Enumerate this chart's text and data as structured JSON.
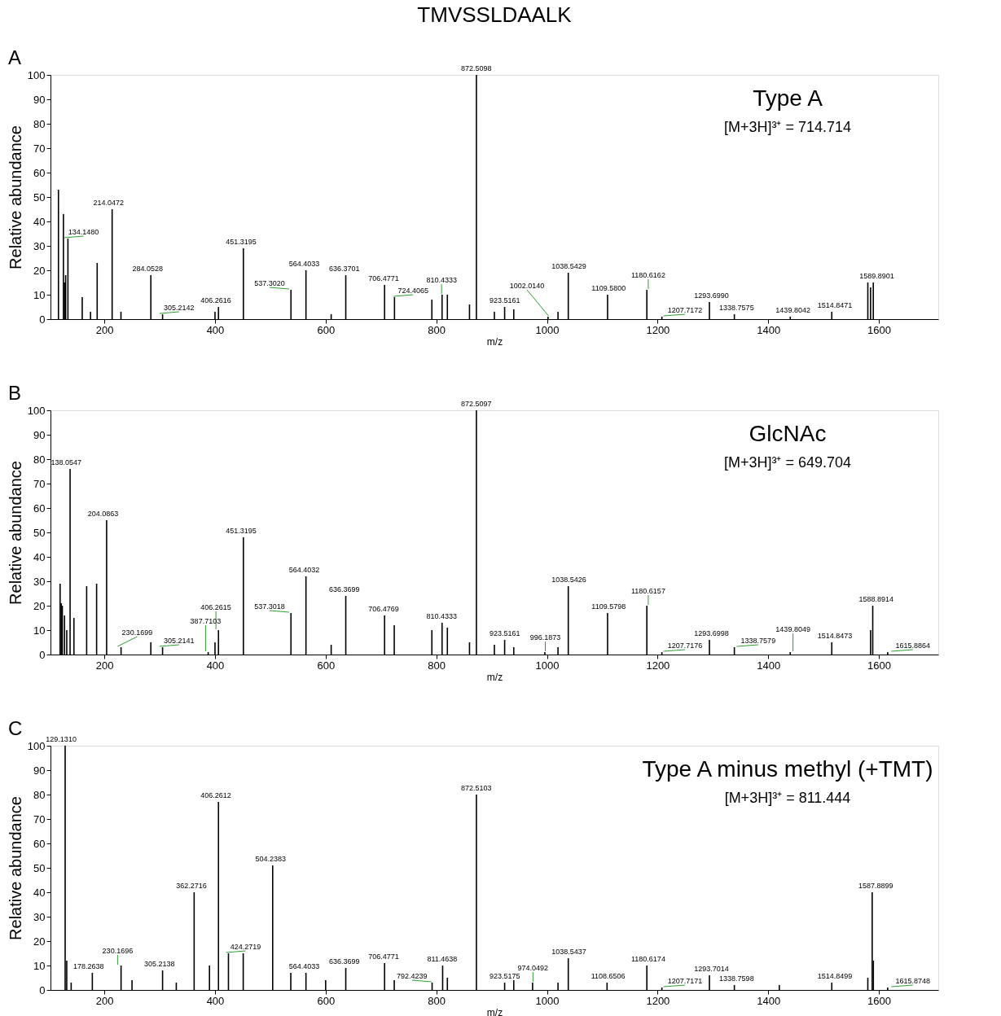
{
  "chart_data": [
    {
      "type": "bar",
      "title": "TMVSSLDAALK",
      "xlabel": "m/z",
      "ylabel": "Relative abundance",
      "color": "#000000",
      "xlim": [
        110,
        1700
      ],
      "ylim": [
        0,
        100
      ],
      "xticks": [
        200,
        400,
        600,
        800,
        1000,
        1200,
        1400,
        1600
      ],
      "yticks": [
        0,
        10,
        20,
        30,
        40,
        50,
        60,
        70,
        80,
        90,
        100
      ],
      "grid": false,
      "annotations": [
        "A",
        "Type A",
        "[M+3H]³⁺ = 714.714",
        {
          "text": "134.1480",
          "x": 134.148,
          "y": 33
        },
        {
          "text": "214.0472",
          "x": 214.0472,
          "y": 45
        },
        {
          "text": "284.0528",
          "x": 284.0528,
          "y": 18
        },
        {
          "text": "305.2142",
          "x": 305.2142,
          "y": 2
        },
        {
          "text": "406.2616",
          "x": 406.2616,
          "y": 5
        },
        {
          "text": "451.3195",
          "x": 451.3195,
          "y": 29
        },
        {
          "text": "537.3020",
          "x": 537.302,
          "y": 12
        },
        {
          "text": "564.4033",
          "x": 564.4033,
          "y": 20
        },
        {
          "text": "636.3701",
          "x": 636.3701,
          "y": 18
        },
        {
          "text": "706.4771",
          "x": 706.4771,
          "y": 14
        },
        {
          "text": "724.4065",
          "x": 724.4065,
          "y": 9
        },
        {
          "text": "810.4333",
          "x": 810.4333,
          "y": 10
        },
        {
          "text": "872.5098",
          "x": 872.5098,
          "y": 100
        },
        {
          "text": "923.5161",
          "x": 923.5161,
          "y": 5
        },
        {
          "text": "1002.0140",
          "x": 1002.014,
          "y": 1
        },
        {
          "text": "1038.5429",
          "x": 1038.5429,
          "y": 19
        },
        {
          "text": "1109.5800",
          "x": 1109.58,
          "y": 10
        },
        {
          "text": "1180.6162",
          "x": 1180.6162,
          "y": 12
        },
        {
          "text": "1207.7172",
          "x": 1207.7172,
          "y": 1
        },
        {
          "text": "1293.6990",
          "x": 1293.699,
          "y": 7
        },
        {
          "text": "1338.7575",
          "x": 1338.7575,
          "y": 2
        },
        {
          "text": "1439.8042",
          "x": 1439.8042,
          "y": 1
        },
        {
          "text": "1514.8471",
          "x": 1514.8471,
          "y": 3
        },
        {
          "text": "1589.8901",
          "x": 1589.8901,
          "y": 15
        }
      ],
      "x": [
        117,
        126,
        128,
        130,
        134.148,
        160,
        175,
        187,
        214.0472,
        230,
        284.0528,
        305.2142,
        400,
        406.2616,
        451.3195,
        537.302,
        564.4033,
        610,
        636.3701,
        706.4771,
        724.4065,
        792,
        810.4333,
        820,
        860,
        872.5098,
        905,
        923.5161,
        940,
        1002.014,
        1020,
        1038.5429,
        1109.58,
        1180.6162,
        1207.7172,
        1293.699,
        1338.7575,
        1439.8042,
        1514.8471,
        1580,
        1585,
        1589.8901
      ],
      "values": [
        53,
        43,
        15,
        18,
        33,
        9,
        3,
        23,
        45,
        3,
        18,
        2,
        3,
        5,
        29,
        12,
        20,
        2,
        18,
        14,
        9,
        8,
        10,
        10,
        6,
        100,
        3,
        5,
        4,
        1,
        3,
        19,
        10,
        12,
        1,
        7,
        2,
        1,
        3,
        15,
        13,
        15
      ]
    },
    {
      "type": "bar",
      "xlabel": "m/z",
      "ylabel": "Relative abundance",
      "color": "#000000",
      "xlim": [
        110,
        1700
      ],
      "ylim": [
        0,
        100
      ],
      "xticks": [
        200,
        400,
        600,
        800,
        1000,
        1200,
        1400,
        1600
      ],
      "yticks": [
        0,
        10,
        20,
        30,
        40,
        50,
        60,
        70,
        80,
        90,
        100
      ],
      "grid": false,
      "annotations": [
        "B",
        "GlcNAc",
        "[M+3H]³⁺ = 649.704",
        {
          "text": "138.0547",
          "x": 138.0547,
          "y": 76
        },
        {
          "text": "204.0863",
          "x": 204.0863,
          "y": 55
        },
        {
          "text": "230.1699",
          "x": 230.1699,
          "y": 3
        },
        {
          "text": "305.2141",
          "x": 305.2141,
          "y": 3
        },
        {
          "text": "387.7103",
          "x": 387.7103,
          "y": 1
        },
        {
          "text": "406.2615",
          "x": 406.2615,
          "y": 10
        },
        {
          "text": "451.3195",
          "x": 451.3195,
          "y": 48
        },
        {
          "text": "537.3018",
          "x": 537.3018,
          "y": 17
        },
        {
          "text": "564.4032",
          "x": 564.4032,
          "y": 32
        },
        {
          "text": "636.3699",
          "x": 636.3699,
          "y": 24
        },
        {
          "text": "706.4769",
          "x": 706.4769,
          "y": 16
        },
        {
          "text": "810.4333",
          "x": 810.4333,
          "y": 13
        },
        {
          "text": "872.5097",
          "x": 872.5097,
          "y": 100
        },
        {
          "text": "923.5161",
          "x": 923.5161,
          "y": 6
        },
        {
          "text": "996.1873",
          "x": 996.1873,
          "y": 1
        },
        {
          "text": "1038.5426",
          "x": 1038.5426,
          "y": 28
        },
        {
          "text": "1109.5798",
          "x": 1109.5798,
          "y": 17
        },
        {
          "text": "1180.6157",
          "x": 1180.6157,
          "y": 20
        },
        {
          "text": "1207.7176",
          "x": 1207.7176,
          "y": 1
        },
        {
          "text": "1293.6998",
          "x": 1293.6998,
          "y": 6
        },
        {
          "text": "1338.7579",
          "x": 1338.7579,
          "y": 3
        },
        {
          "text": "1439.8049",
          "x": 1439.8049,
          "y": 1
        },
        {
          "text": "1514.8473",
          "x": 1514.8473,
          "y": 5
        },
        {
          "text": "1588.8914",
          "x": 1588.8914,
          "y": 20
        },
        {
          "text": "1615.8864",
          "x": 1615.8864,
          "y": 1
        }
      ],
      "x": [
        120,
        122,
        124,
        128,
        132,
        138.0547,
        145,
        168,
        186,
        204.0863,
        230.1699,
        284,
        305.2141,
        387.7103,
        400,
        406.2615,
        451.3195,
        537.3018,
        564.4032,
        610,
        636.3699,
        706.4769,
        724,
        792,
        810.4333,
        820,
        860,
        872.5097,
        905,
        923.5161,
        940,
        996.1873,
        1020,
        1038.5426,
        1109.5798,
        1180.6157,
        1207.7176,
        1293.6998,
        1338.7579,
        1439.8049,
        1514.8473,
        1585,
        1588.8914,
        1615.8864
      ],
      "values": [
        29,
        21,
        20,
        16,
        10,
        76,
        15,
        28,
        29,
        55,
        3,
        5,
        3,
        1,
        5,
        10,
        48,
        17,
        32,
        4,
        24,
        16,
        12,
        10,
        13,
        11,
        5,
        100,
        4,
        6,
        3,
        1,
        3,
        28,
        17,
        20,
        1,
        6,
        3,
        1,
        5,
        10,
        20,
        1
      ]
    },
    {
      "type": "bar",
      "xlabel": "m/z",
      "ylabel": "Relative abundance",
      "color": "#000000",
      "xlim": [
        110,
        1700
      ],
      "ylim": [
        0,
        100
      ],
      "xticks": [
        200,
        400,
        600,
        800,
        1000,
        1200,
        1400,
        1600
      ],
      "yticks": [
        0,
        10,
        20,
        30,
        40,
        50,
        60,
        70,
        80,
        90,
        100
      ],
      "grid": false,
      "annotations": [
        "C",
        "Type A minus methyl (+TMT)",
        "[M+3H]³⁺ = 811.444",
        {
          "text": "129.1310",
          "x": 129.131,
          "y": 100
        },
        {
          "text": "178.2638",
          "x": 178.2638,
          "y": 7
        },
        {
          "text": "230.1696",
          "x": 230.1696,
          "y": 10
        },
        {
          "text": "305.2138",
          "x": 305.2138,
          "y": 8
        },
        {
          "text": "362.2716",
          "x": 362.2716,
          "y": 40
        },
        {
          "text": "406.2612",
          "x": 406.2612,
          "y": 77
        },
        {
          "text": "424.2719",
          "x": 424.2719,
          "y": 15
        },
        {
          "text": "504.2383",
          "x": 504.2383,
          "y": 51
        },
        {
          "text": "564.4033",
          "x": 564.4033,
          "y": 7
        },
        {
          "text": "636.3699",
          "x": 636.3699,
          "y": 9
        },
        {
          "text": "706.4771",
          "x": 706.4771,
          "y": 11
        },
        {
          "text": "792.4239",
          "x": 792.4239,
          "y": 3
        },
        {
          "text": "811.4638",
          "x": 811.4638,
          "y": 10
        },
        {
          "text": "872.5103",
          "x": 872.5103,
          "y": 80
        },
        {
          "text": "923.5175",
          "x": 923.5175,
          "y": 3
        },
        {
          "text": "974.0492",
          "x": 974.0492,
          "y": 3
        },
        {
          "text": "1038.5437",
          "x": 1038.5437,
          "y": 13
        },
        {
          "text": "1108.6506",
          "x": 1108.6506,
          "y": 3
        },
        {
          "text": "1180.6174",
          "x": 1180.6174,
          "y": 10
        },
        {
          "text": "1207.7171",
          "x": 1207.7171,
          "y": 1
        },
        {
          "text": "1293.7014",
          "x": 1293.7014,
          "y": 6
        },
        {
          "text": "1338.7598",
          "x": 1338.7598,
          "y": 2
        },
        {
          "text": "1514.8499",
          "x": 1514.8499,
          "y": 3
        },
        {
          "text": "1587.8899",
          "x": 1587.8899,
          "y": 40
        },
        {
          "text": "1615.8748",
          "x": 1615.8748,
          "y": 1
        }
      ],
      "x": [
        129.131,
        132,
        140,
        178.2638,
        230.1696,
        250,
        305.2138,
        330,
        362.2716,
        390,
        406.2612,
        424.2719,
        451,
        504.2383,
        537,
        564.4033,
        600,
        636.3699,
        706.4771,
        724,
        792.4239,
        811.4638,
        820,
        872.5103,
        923.5175,
        940,
        974.0492,
        1020,
        1038.5437,
        1108.6506,
        1180.6174,
        1207.7171,
        1293.7014,
        1338.7598,
        1420,
        1514.8499,
        1580,
        1587.8899,
        1590,
        1615.8748
      ],
      "values": [
        100,
        12,
        3,
        7,
        10,
        4,
        8,
        3,
        40,
        10,
        77,
        15,
        15,
        51,
        7,
        7,
        4,
        9,
        11,
        4,
        3,
        10,
        5,
        80,
        3,
        4,
        3,
        3,
        13,
        3,
        10,
        1,
        6,
        2,
        2,
        3,
        5,
        40,
        12,
        1
      ]
    }
  ]
}
